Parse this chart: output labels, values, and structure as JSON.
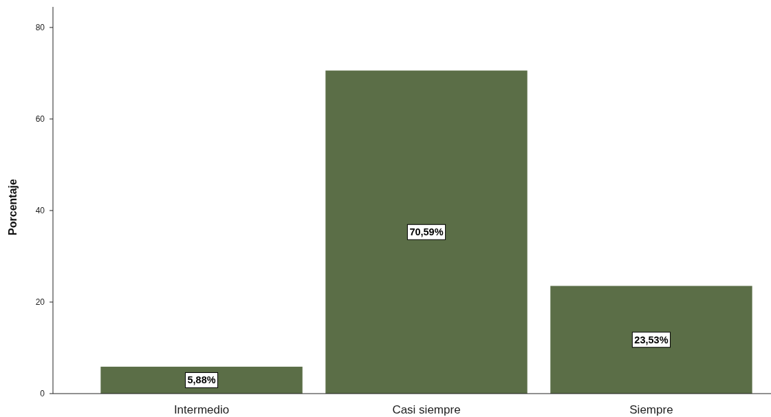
{
  "chart_data": {
    "type": "bar",
    "ylabel": "Porcentaje",
    "categories": [
      "Intermedio",
      "Casi siempre",
      "Siempre"
    ],
    "values": [
      5.88,
      70.59,
      23.53
    ],
    "value_labels": [
      "5,88%",
      "70,59%",
      "23,53%"
    ],
    "color": "#5b6e47",
    "ylim": [
      0,
      84.5
    ],
    "yticks": [
      0,
      20,
      40,
      60,
      80
    ],
    "grid": false
  }
}
